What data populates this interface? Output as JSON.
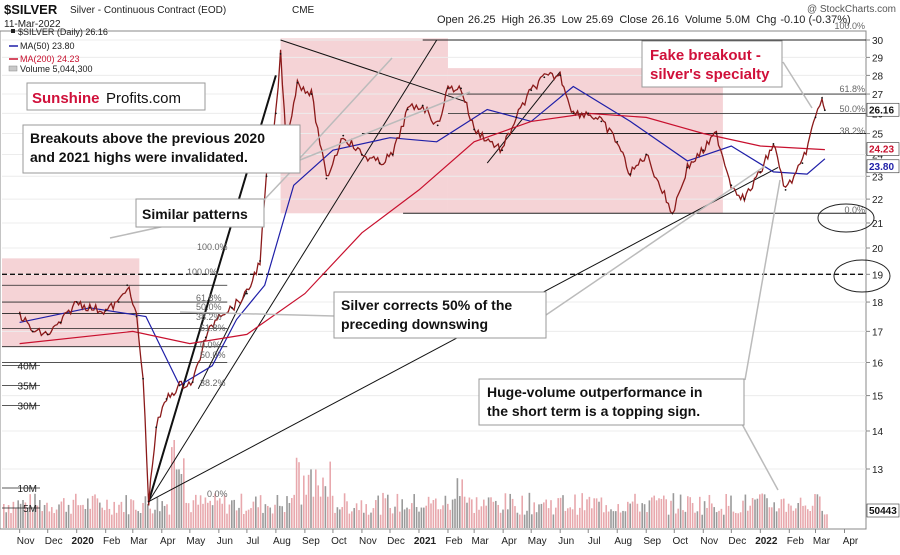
{
  "header": {
    "symbol": "$SILVER",
    "name": "Silver - Continuous Contract (EOD)",
    "exchange": "CME",
    "date": "11-Mar-2022",
    "watermark": "@ StockCharts.com",
    "ohlc": [
      {
        "label": "Open",
        "value": "26.25"
      },
      {
        "label": "High",
        "value": "26.35"
      },
      {
        "label": "Low",
        "value": "25.69"
      },
      {
        "label": "Close",
        "value": "26.16"
      },
      {
        "label": "Volume",
        "value": "5.0M"
      },
      {
        "label": "Chg",
        "value": "-0.10 (-0.37%)"
      }
    ]
  },
  "legend": {
    "price": "$SILVER (Daily) 26.16",
    "ma50": "MA(50) 23.80",
    "ma200": "MA(200) 24.23",
    "volume": "Volume 5,044,300"
  },
  "brand": {
    "part1": "Sunshine",
    "part2": "Profits.com"
  },
  "annotations": {
    "breakouts": "Breakouts above the previous 2020\nand 2021 highs were invalidated.",
    "similar": "Similar patterns",
    "corrects": "Silver corrects 50% of the\npreceding downswing",
    "volume": "Huge-volume outperformance in\nthe short term is a topping sign.",
    "fake": "Fake breakout -\nsilver's specialty"
  },
  "fib_labels": {
    "left_100_top": "100.0%",
    "left_100": "100.0%",
    "left_618": "61.8%",
    "left_500": "50.0%",
    "left_382": "38.2%",
    "left_618b": "61.8%",
    "left_00": "0.0%",
    "left_500b": "50.0%",
    "left_382b": "38.2%",
    "left_00b": "0.0%",
    "right_100": "100.0%",
    "right_618": "61.8%",
    "right_500": "50.0%",
    "right_382": "38.2%",
    "right_00": "0.0%"
  },
  "right_badges": {
    "close": "26.16",
    "ma200": "24.23",
    "ma50": "23.80",
    "volume": "50443"
  },
  "colors": {
    "price": "#222222",
    "candle_up": "#8b1a1a",
    "ma50": "#1f1fa8",
    "ma200": "#c8102e",
    "shade": "#f2c8cc",
    "brand": "#d0103a",
    "fake": "#d0103a",
    "volume_bar": "#e8a8ad",
    "volume_bar_dark": "#9a9a9a"
  },
  "chart_data": {
    "type": "line",
    "title": "$SILVER Silver - Continuous Contract (EOD)",
    "y_scale": "log",
    "ylim": [
      12.2,
      30.5
    ],
    "y_ticks": [
      13,
      14,
      15,
      16,
      17,
      18,
      19,
      20,
      21,
      22,
      23,
      24,
      25,
      26,
      27,
      28,
      29,
      30
    ],
    "x_tick_labels": [
      "Nov",
      "Dec",
      "2020",
      "Feb",
      "Mar",
      "Apr",
      "May",
      "Jun",
      "Jul",
      "Aug",
      "Sep",
      "Oct",
      "Nov",
      "Dec",
      "2021",
      "Feb",
      "Mar",
      "Apr",
      "May",
      "Jun",
      "Jul",
      "Aug",
      "Sep",
      "Oct",
      "Nov",
      "Dec",
      "2022",
      "Feb",
      "Mar",
      "Apr"
    ],
    "volume_ticks": [
      "5M",
      "10M",
      "30M",
      "35M",
      "40M"
    ],
    "price_series": {
      "name": "$SILVER",
      "x": [
        "2019-11-01",
        "2019-11-15",
        "2019-12-01",
        "2019-12-15",
        "2020-01-01",
        "2020-01-15",
        "2020-02-01",
        "2020-02-15",
        "2020-02-24",
        "2020-03-05",
        "2020-03-12",
        "2020-03-18",
        "2020-03-26",
        "2020-04-06",
        "2020-04-20",
        "2020-05-04",
        "2020-05-18",
        "2020-06-01",
        "2020-06-15",
        "2020-07-01",
        "2020-07-15",
        "2020-07-22",
        "2020-08-01",
        "2020-08-06",
        "2020-08-12",
        "2020-08-24",
        "2020-09-08",
        "2020-09-24",
        "2020-10-12",
        "2020-11-01",
        "2020-11-20",
        "2020-12-04",
        "2020-12-20",
        "2021-01-05",
        "2021-01-21",
        "2021-02-01",
        "2021-02-15",
        "2021-03-01",
        "2021-03-31",
        "2021-04-15",
        "2021-05-01",
        "2021-05-15",
        "2021-06-01",
        "2021-06-15",
        "2021-07-01",
        "2021-07-15",
        "2021-08-01",
        "2021-08-15",
        "2021-09-01",
        "2021-09-29",
        "2021-10-15",
        "2021-11-01",
        "2021-11-15",
        "2021-12-01",
        "2021-12-15",
        "2022-01-01",
        "2022-01-15",
        "2022-01-28",
        "2022-02-15",
        "2022-03-01",
        "2022-03-08",
        "2022-03-11"
      ],
      "values": [
        17.6,
        17.0,
        16.9,
        17.3,
        18.0,
        17.8,
        17.7,
        18.0,
        18.6,
        17.5,
        15.5,
        12.2,
        14.1,
        14.9,
        15.3,
        15.4,
        16.8,
        17.6,
        17.8,
        18.3,
        19.5,
        23.0,
        26.0,
        29.2,
        24.6,
        27.6,
        27.0,
        22.9,
        24.9,
        24.0,
        23.6,
        24.0,
        26.2,
        26.4,
        25.4,
        27.3,
        27.3,
        25.2,
        24.2,
        25.8,
        27.2,
        27.9,
        28.0,
        26.0,
        26.0,
        25.6,
        24.6,
        23.1,
        24.0,
        21.4,
        23.4,
        24.2,
        25.0,
        22.6,
        22.0,
        23.2,
        24.5,
        22.4,
        23.6,
        25.8,
        26.8,
        26.16
      ]
    },
    "series": [
      {
        "name": "MA(50)",
        "x": [
          "2019-11-01",
          "2020-01-15",
          "2020-03-15",
          "2020-04-20",
          "2020-05-25",
          "2020-06-20",
          "2020-07-20",
          "2020-08-20",
          "2020-10-01",
          "2020-12-01",
          "2021-01-20",
          "2021-03-15",
          "2021-05-01",
          "2021-06-15",
          "2021-08-15",
          "2021-10-15",
          "2021-12-01",
          "2022-01-15",
          "2022-02-20",
          "2022-03-11"
        ],
        "values": [
          17.3,
          17.8,
          17.5,
          15.3,
          15.9,
          17.4,
          18.6,
          22.6,
          24.2,
          24.8,
          24.6,
          26.2,
          25.6,
          27.4,
          25.6,
          23.7,
          24.4,
          23.2,
          23.1,
          23.8
        ]
      },
      {
        "name": "MA(200)",
        "x": [
          "2019-11-01",
          "2020-03-01",
          "2020-05-01",
          "2020-07-01",
          "2020-09-01",
          "2020-11-01",
          "2021-01-01",
          "2021-03-01",
          "2021-05-01",
          "2021-07-01",
          "2021-09-01",
          "2021-11-01",
          "2022-01-01",
          "2022-03-11"
        ],
        "values": [
          16.6,
          17.0,
          16.6,
          16.9,
          18.3,
          20.6,
          22.4,
          24.6,
          25.6,
          26.0,
          25.8,
          25.0,
          24.4,
          24.23
        ]
      }
    ],
    "horizontal_levels": [
      19.0,
      21.4,
      23.0,
      25.0,
      27.0,
      30.0
    ],
    "volume": {
      "max_label": "40M",
      "latest": "50443"
    }
  }
}
